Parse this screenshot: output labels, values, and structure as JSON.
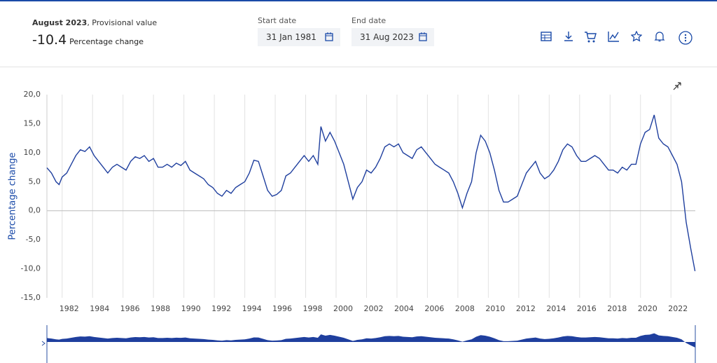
{
  "header": {
    "period": "August 2023",
    "status": ", Provisional value",
    "value": "-10.4",
    "unit": "Percentage change",
    "start_label": "Start date",
    "start_value": "31 Jan 1981",
    "end_label": "End date",
    "end_value": "31 Aug 2023"
  },
  "chart_data": {
    "type": "line",
    "y_label": "Percentage change",
    "color": "#1f3f9e",
    "grid": true,
    "xlim": [
      1981,
      2023.6
    ],
    "xticks": [
      1982,
      1984,
      1986,
      1988,
      1990,
      1992,
      1994,
      1996,
      1998,
      2000,
      2002,
      2004,
      2006,
      2008,
      2010,
      2012,
      2014,
      2016,
      2018,
      2020,
      2022
    ],
    "ylim": [
      -15,
      20
    ],
    "yticks": [
      {
        "value": -15,
        "label": "-15,0"
      },
      {
        "value": -10,
        "label": "-10,0"
      },
      {
        "value": -5,
        "label": "-5,0"
      },
      {
        "value": 0,
        "label": "0,0"
      },
      {
        "value": 5,
        "label": "5,0"
      },
      {
        "value": 10,
        "label": "10,0"
      },
      {
        "value": 15,
        "label": "15,0"
      },
      {
        "value": 20,
        "label": "20,0"
      }
    ],
    "x": [
      1981.0,
      1981.3,
      1981.6,
      1981.8,
      1982.0,
      1982.3,
      1982.6,
      1982.9,
      1983.2,
      1983.5,
      1983.8,
      1984.1,
      1984.4,
      1984.7,
      1985.0,
      1985.3,
      1985.6,
      1985.9,
      1986.2,
      1986.5,
      1986.8,
      1987.1,
      1987.4,
      1987.7,
      1988.0,
      1988.3,
      1988.6,
      1988.9,
      1989.2,
      1989.5,
      1989.8,
      1990.1,
      1990.4,
      1990.7,
      1991.0,
      1991.3,
      1991.6,
      1991.9,
      1992.2,
      1992.5,
      1992.8,
      1993.1,
      1993.4,
      1993.7,
      1994.0,
      1994.3,
      1994.6,
      1994.9,
      1995.2,
      1995.5,
      1995.8,
      1996.1,
      1996.4,
      1996.7,
      1997.0,
      1997.3,
      1997.6,
      1997.9,
      1998.2,
      1998.5,
      1998.8,
      1999.0,
      1999.3,
      1999.6,
      1999.9,
      2000.2,
      2000.5,
      2000.8,
      2001.1,
      2001.4,
      2001.7,
      2002.0,
      2002.3,
      2002.6,
      2002.9,
      2003.2,
      2003.5,
      2003.8,
      2004.1,
      2004.4,
      2004.7,
      2005.0,
      2005.3,
      2005.6,
      2005.9,
      2006.2,
      2006.5,
      2006.8,
      2007.1,
      2007.4,
      2007.7,
      2008.0,
      2008.3,
      2008.6,
      2008.9,
      2009.2,
      2009.5,
      2009.8,
      2010.1,
      2010.4,
      2010.7,
      2011.0,
      2011.3,
      2011.6,
      2011.9,
      2012.2,
      2012.5,
      2012.8,
      2013.1,
      2013.4,
      2013.7,
      2014.0,
      2014.3,
      2014.6,
      2014.9,
      2015.2,
      2015.5,
      2015.8,
      2016.1,
      2016.4,
      2016.7,
      2017.0,
      2017.3,
      2017.6,
      2017.9,
      2018.2,
      2018.5,
      2018.8,
      2019.1,
      2019.4,
      2019.7,
      2020.0,
      2020.3,
      2020.6,
      2020.9,
      2021.2,
      2021.5,
      2021.8,
      2022.1,
      2022.4,
      2022.7,
      2023.0,
      2023.3,
      2023.58
    ],
    "values": [
      7.4,
      6.5,
      5.0,
      4.5,
      5.8,
      6.5,
      8.0,
      9.5,
      10.5,
      10.2,
      11.0,
      9.5,
      8.5,
      7.5,
      6.5,
      7.5,
      8.0,
      7.5,
      7.0,
      8.5,
      9.3,
      9.0,
      9.5,
      8.5,
      9.0,
      7.5,
      7.5,
      8.0,
      7.5,
      8.2,
      7.8,
      8.5,
      7.0,
      6.5,
      6.0,
      5.5,
      4.5,
      4.0,
      3.0,
      2.5,
      3.5,
      3.0,
      4.0,
      4.5,
      5.0,
      6.5,
      8.7,
      8.5,
      6.0,
      3.5,
      2.5,
      2.8,
      3.5,
      6.0,
      6.5,
      7.5,
      8.5,
      9.5,
      8.5,
      9.5,
      8.0,
      14.5,
      12.0,
      13.5,
      12.0,
      10.0,
      8.0,
      5.0,
      2.0,
      4.0,
      5.0,
      7.0,
      6.5,
      7.5,
      9.0,
      11.0,
      11.5,
      11.0,
      11.5,
      10.0,
      9.5,
      9.0,
      10.5,
      11.0,
      10.0,
      9.0,
      8.0,
      7.5,
      7.0,
      6.5,
      5.0,
      3.0,
      0.5,
      3.0,
      5.0,
      10.0,
      13.0,
      12.0,
      10.0,
      7.0,
      3.5,
      1.5,
      1.5,
      2.0,
      2.5,
      4.5,
      6.5,
      7.5,
      8.5,
      6.5,
      5.5,
      6.0,
      7.0,
      8.5,
      10.5,
      11.5,
      11.0,
      9.5,
      8.5,
      8.5,
      9.0,
      9.5,
      9.0,
      8.0,
      7.0,
      7.0,
      6.5,
      7.5,
      7.0,
      8.0,
      8.0,
      11.5,
      13.5,
      14.0,
      16.5,
      12.5,
      11.5,
      11.0,
      9.5,
      8.0,
      5.0,
      -2.0,
      -6.5,
      -10.4
    ]
  }
}
